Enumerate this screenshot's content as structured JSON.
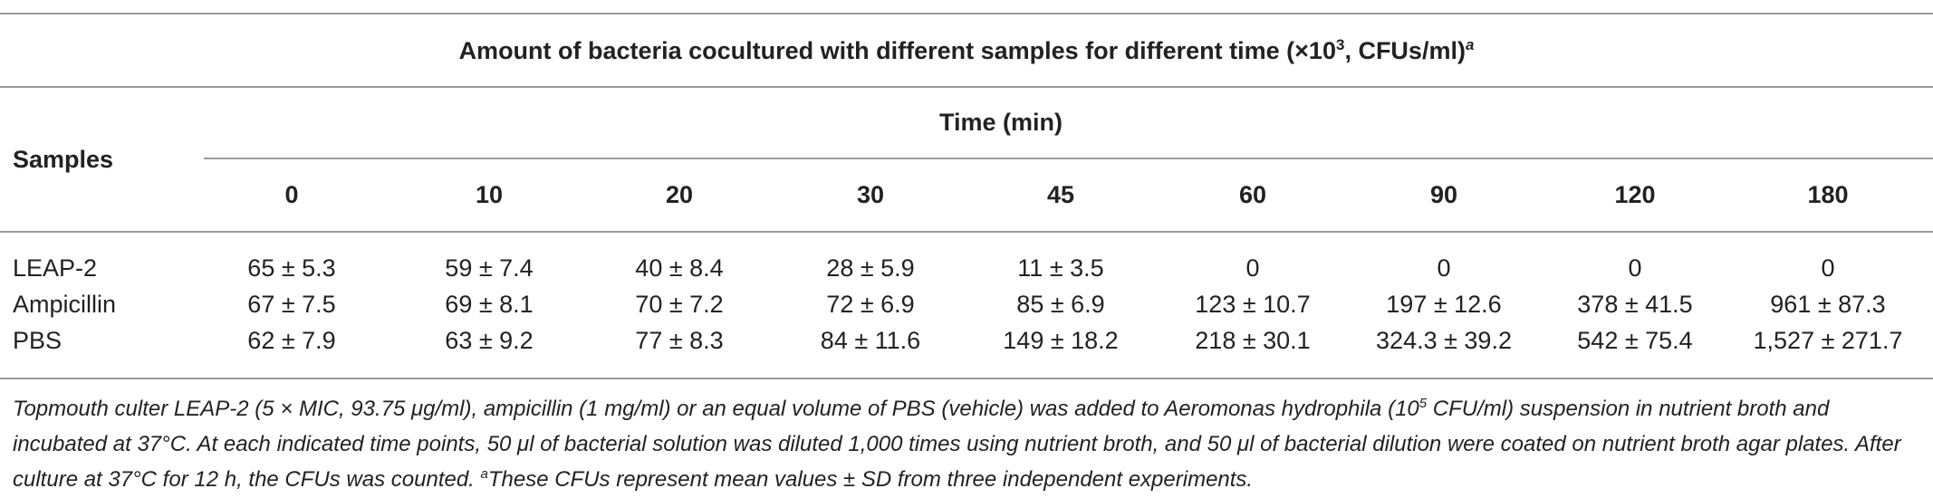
{
  "table": {
    "title_main": "Amount of bacteria cocultured with different samples for different time (×10",
    "title_exp": "3",
    "title_end": ", CFUs/ml)",
    "title_note": "a",
    "samples_header": "Samples",
    "time_header": "Time (min)",
    "columns": [
      "0",
      "10",
      "20",
      "30",
      "45",
      "60",
      "90",
      "120",
      "180"
    ],
    "rows": [
      {
        "label": "LEAP-2",
        "values": [
          "65 ± 5.3",
          "59 ± 7.4",
          "40 ± 8.4",
          "28 ± 5.9",
          "11 ± 3.5",
          "0",
          "0",
          "0",
          "0"
        ]
      },
      {
        "label": "Ampicillin",
        "values": [
          "67 ± 7.5",
          "69 ± 8.1",
          "70 ± 7.2",
          "72 ± 6.9",
          "85 ± 6.9",
          "123 ± 10.7",
          "197 ± 12.6",
          "378 ± 41.5",
          "961 ± 87.3"
        ]
      },
      {
        "label": "PBS",
        "values": [
          "62 ± 7.9",
          "63 ± 9.2",
          "77 ± 8.3",
          "84 ± 11.6",
          "149 ± 18.2",
          "218 ± 30.1",
          "324.3 ± 39.2",
          "542 ± 75.4",
          "1,527 ± 271.7"
        ]
      }
    ]
  },
  "footnote": {
    "part1": "Topmouth culter LEAP-2 (5 × MIC, 93.75 μg/ml), ampicillin (1 mg/ml) or an equal volume of PBS (vehicle) was added to Aeromonas hydrophila (10",
    "exp": "5",
    "part2": " CFU/ml) suspension in nutrient broth and incubated at 37°C. At each indicated time points, 50 μl of bacterial solution was diluted 1,000 times using nutrient broth, and 50 μl of bacterial dilution were coated on nutrient broth agar plates. After culture at 37°C for 12 h, the CFUs was counted. ",
    "note_mark": "a",
    "part3": "These CFUs represent mean values ± SD from three independent experiments."
  }
}
